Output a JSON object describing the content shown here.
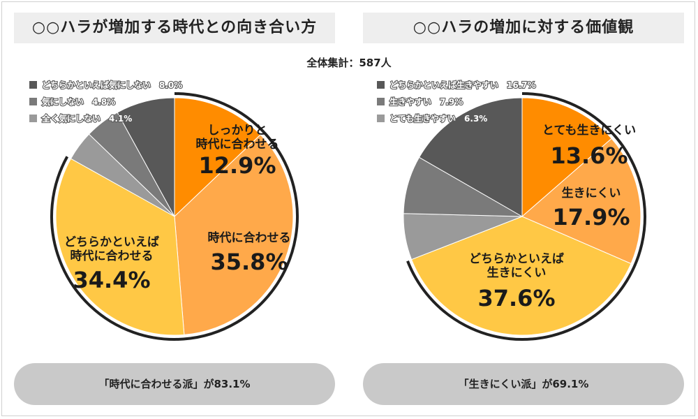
{
  "total_label": "全体集計：587人",
  "colors": {
    "orange_dark": "#FF8C00",
    "orange_mid": "#FFA94A",
    "yellow": "#FFC845",
    "gray_dark": "#585858",
    "gray_mid": "#7a7a7a",
    "gray_light": "#9a9a9a",
    "pill_bg": "#c9c9c9"
  },
  "chart_data": [
    {
      "type": "pie",
      "title": "○○ハラが増加する時代との向き合い方",
      "summary": "「時代に合わせる派」が83.1%",
      "slices": [
        {
          "label": "しっかりと時代に合わせる",
          "label_lines": [
            "しっかりと",
            "時代に合わせる"
          ],
          "value": 12.9,
          "value_text": "12.9%",
          "color": "#FF8C00"
        },
        {
          "label": "時代に合わせる",
          "label_lines": [
            "時代に合わせる"
          ],
          "value": 35.8,
          "value_text": "35.8%",
          "color": "#FFA94A"
        },
        {
          "label": "どちらかといえば時代に合わせる",
          "label_lines": [
            "どちらかといえば",
            "時代に合わせる"
          ],
          "value": 34.4,
          "value_text": "34.4%",
          "color": "#FFC845"
        },
        {
          "label": "全く気にしない",
          "value": 4.1,
          "value_text": "4.1%",
          "color": "#9a9a9a"
        },
        {
          "label": "気にしない",
          "value": 4.8,
          "value_text": "4.8%",
          "color": "#7a7a7a"
        },
        {
          "label": "どちらかといえば気にしない",
          "value": 8.0,
          "value_text": "8.0%",
          "color": "#585858"
        }
      ],
      "legend": [
        {
          "text": "どちらかといえば気にしない　8.0%",
          "color": "#585858"
        },
        {
          "text": "気にしない　4.8%",
          "color": "#7a7a7a"
        },
        {
          "text": "全く気にしない　4.1%",
          "color": "#9a9a9a"
        }
      ]
    },
    {
      "type": "pie",
      "title": "○○ハラの増加に対する価値観",
      "summary": "「生きにくい派」が69.1%",
      "slices": [
        {
          "label": "とても生きにくい",
          "label_lines": [
            "とても生きにくい"
          ],
          "value": 13.6,
          "value_text": "13.6%",
          "color": "#FF8C00"
        },
        {
          "label": "生きにくい",
          "label_lines": [
            "生きにくい"
          ],
          "value": 17.9,
          "value_text": "17.9%",
          "color": "#FFA94A"
        },
        {
          "label": "どちらかといえば生きにくい",
          "label_lines": [
            "どちらかといえば",
            "生きにくい"
          ],
          "value": 37.6,
          "value_text": "37.6%",
          "color": "#FFC845"
        },
        {
          "label": "とても生きやすい",
          "value": 6.3,
          "value_text": "6.3%",
          "color": "#9a9a9a"
        },
        {
          "label": "生きやすい",
          "value": 7.9,
          "value_text": "7.9%",
          "color": "#7a7a7a"
        },
        {
          "label": "どちらかといえば生きやすい",
          "value": 16.7,
          "value_text": "16.7%",
          "color": "#585858"
        }
      ],
      "legend": [
        {
          "text": "どちらかといえば生きやすい　16.7%",
          "color": "#585858"
        },
        {
          "text": "生きやすい　7.9%",
          "color": "#7a7a7a"
        },
        {
          "text": "とても生きやすい　6.3%",
          "color": "#9a9a9a"
        }
      ]
    }
  ]
}
